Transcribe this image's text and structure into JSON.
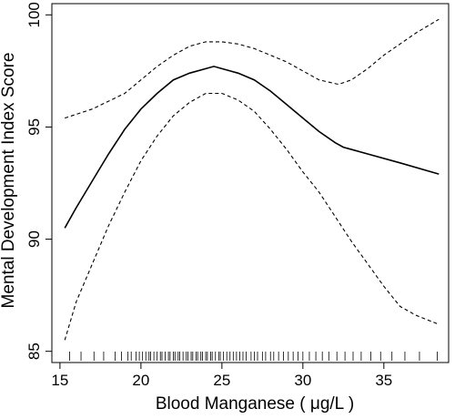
{
  "chart_data": {
    "type": "line",
    "title": "",
    "xlabel": "Blood Manganese ( μg/L )",
    "ylabel": "Mental Development Index Score",
    "xlim": [
      14.5,
      39.0
    ],
    "ylim": [
      84.5,
      100.5
    ],
    "x_ticks": [
      15,
      20,
      25,
      30,
      35
    ],
    "y_ticks": [
      85,
      90,
      95,
      100
    ],
    "grid": false,
    "legend": "none",
    "series": [
      {
        "style": "solid",
        "x": [
          15.3,
          16,
          17,
          18,
          19,
          20,
          21,
          22,
          23,
          24,
          24.5,
          25,
          26,
          27,
          28,
          29,
          30,
          31,
          32,
          32.5,
          34,
          36,
          38.4
        ],
        "y": [
          90.5,
          91.4,
          92.6,
          93.8,
          94.9,
          95.8,
          96.5,
          97.1,
          97.4,
          97.6,
          97.7,
          97.6,
          97.4,
          97.1,
          96.6,
          96.0,
          95.4,
          94.8,
          94.3,
          94.1,
          93.8,
          93.4,
          92.9
        ]
      },
      {
        "style": "dashed",
        "x": [
          15.3,
          17,
          19,
          20,
          21,
          22,
          23,
          24,
          25,
          26,
          27,
          28,
          29,
          30,
          31,
          32.2,
          33,
          34,
          35,
          36,
          37,
          38.4
        ],
        "y": [
          95.4,
          95.8,
          96.5,
          97.1,
          97.7,
          98.2,
          98.6,
          98.8,
          98.8,
          98.7,
          98.5,
          98.2,
          97.9,
          97.5,
          97.1,
          96.9,
          97.1,
          97.6,
          98.2,
          98.7,
          99.2,
          99.8
        ]
      },
      {
        "style": "dashed",
        "x": [
          15.3,
          16,
          17,
          18,
          19,
          20,
          21,
          22,
          23,
          24,
          25,
          26,
          27,
          28,
          29,
          30,
          31,
          32,
          33,
          34,
          35,
          36,
          37,
          38.4
        ],
        "y": [
          85.5,
          87.2,
          88.9,
          90.6,
          92.1,
          93.5,
          94.6,
          95.5,
          96.1,
          96.5,
          96.5,
          96.2,
          95.7,
          94.9,
          94.0,
          93.0,
          92.1,
          91.0,
          89.9,
          88.9,
          87.9,
          87.0,
          86.6,
          86.2
        ]
      }
    ],
    "rug": [
      15.6,
      16.3,
      17.1,
      17.7,
      18.4,
      18.8,
      19.2,
      19.4,
      19.7,
      19.9,
      20.1,
      20.3,
      20.5,
      20.6,
      20.8,
      21.0,
      21.2,
      21.3,
      21.5,
      21.7,
      21.8,
      22.0,
      22.1,
      22.3,
      22.4,
      22.6,
      22.8,
      22.9,
      23.1,
      23.2,
      23.4,
      23.5,
      23.7,
      23.8,
      24.0,
      24.1,
      24.3,
      24.4,
      24.6,
      24.8,
      24.9,
      25.1,
      25.3,
      25.5,
      25.7,
      25.9,
      26.1,
      26.3,
      26.5,
      26.8,
      27.0,
      27.2,
      27.5,
      27.7,
      28.0,
      28.2,
      28.5,
      28.8,
      29.1,
      29.4,
      29.7,
      30.0,
      30.4,
      30.8,
      31.2,
      31.6,
      32.1,
      32.6,
      33.1,
      33.6,
      34.2,
      34.8,
      35.5,
      36.3,
      37.2,
      38.3
    ]
  }
}
